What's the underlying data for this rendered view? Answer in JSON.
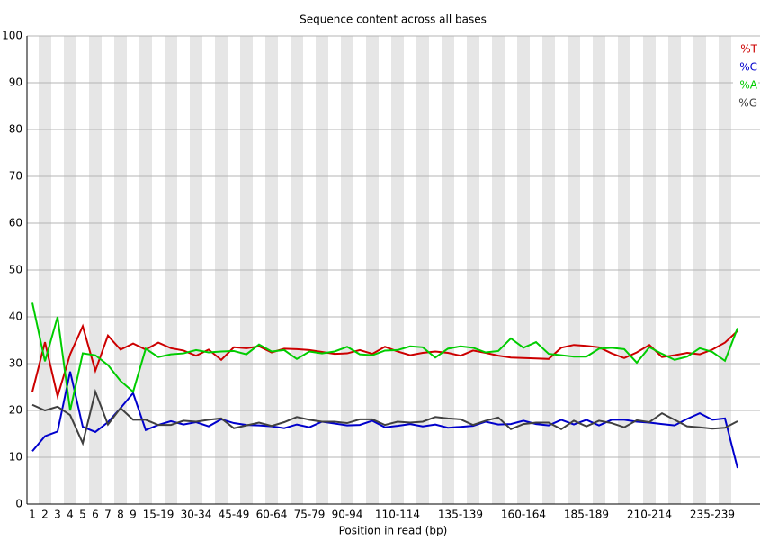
{
  "chart_data": {
    "type": "line",
    "title": "Sequence content across all bases",
    "x_label": "Position in read (bp)",
    "categories": [
      "1",
      "2",
      "3",
      "4",
      "5",
      "6",
      "7",
      "8",
      "9",
      null,
      "15-19",
      null,
      null,
      "30-34",
      null,
      null,
      "45-49",
      null,
      null,
      "60-64",
      null,
      null,
      "75-79",
      null,
      null,
      "90-94",
      null,
      null,
      null,
      "110-114",
      null,
      null,
      null,
      null,
      "135-139",
      null,
      null,
      null,
      null,
      "160-164",
      null,
      null,
      null,
      null,
      "185-189",
      null,
      null,
      null,
      null,
      "210-214",
      null,
      null,
      null,
      null,
      "235-239",
      null,
      null
    ],
    "series": [
      {
        "name": "%T",
        "color": "#cc0000",
        "values": [
          24,
          34.6,
          23,
          32,
          38,
          28.5,
          36,
          33,
          34.3,
          33,
          34.5,
          33.3,
          32.8,
          31.7,
          33,
          30.8,
          33.5,
          33.3,
          33.7,
          32.4,
          33.2,
          33.1,
          32.9,
          32.5,
          32.1,
          32.2,
          32.9,
          32.1,
          33.6,
          32.6,
          31.8,
          32.3,
          32.6,
          32.3,
          31.7,
          32.8,
          32.3,
          31.7,
          31.3,
          31.2,
          31.1,
          31,
          33.4,
          34,
          33.8,
          33.5,
          32.2,
          31.2,
          32.4,
          34,
          31.4,
          31.8,
          32.3,
          32,
          33,
          34.5,
          37
        ]
      },
      {
        "name": "%C",
        "color": "#0000cc",
        "values": [
          11.3,
          14.5,
          15.5,
          28.3,
          16.5,
          15.4,
          17.5,
          20.5,
          23.7,
          15.8,
          16.9,
          17.7,
          17,
          17.5,
          16.6,
          18.1,
          17.3,
          16.9,
          16.8,
          16.6,
          16.2,
          17,
          16.4,
          17.6,
          17.2,
          16.8,
          16.9,
          17.8,
          16.4,
          16.7,
          17.1,
          16.6,
          17,
          16.3,
          16.5,
          16.7,
          17.6,
          17,
          17.1,
          17.8,
          17.1,
          16.8,
          18,
          17,
          18,
          16.8,
          18,
          18,
          17.6,
          17.4,
          17.1,
          16.8,
          18.2,
          19.4,
          18,
          18.3,
          7.7
        ]
      },
      {
        "name": "%A",
        "color": "#00cc00",
        "values": [
          43,
          30.5,
          40,
          20,
          32.2,
          31.8,
          29.7,
          26.3,
          24,
          33.2,
          31.4,
          32,
          32.2,
          32.9,
          32.4,
          32.6,
          32.7,
          32,
          34.1,
          32.6,
          32.9,
          31,
          32.6,
          32.2,
          32.6,
          33.6,
          32,
          31.8,
          32.8,
          32.9,
          33.7,
          33.5,
          31.3,
          33.2,
          33.7,
          33.4,
          32.4,
          32.7,
          35.4,
          33.4,
          34.6,
          32.1,
          31.8,
          31.5,
          31.5,
          33.2,
          33.4,
          33.1,
          30.2,
          33.5,
          32.1,
          30.8,
          31.5,
          33.3,
          32.5,
          30.6,
          37.6
        ]
      },
      {
        "name": "%G",
        "color": "#404040",
        "values": [
          21.2,
          20,
          20.8,
          19,
          13,
          24,
          17,
          20.5,
          18,
          18,
          16.9,
          16.9,
          17.8,
          17.6,
          18,
          18.3,
          16.2,
          16.8,
          17.4,
          16.7,
          17.5,
          18.6,
          18,
          17.6,
          17.6,
          17.3,
          18.1,
          18.1,
          16.9,
          17.6,
          17.4,
          17.6,
          18.6,
          18.3,
          18.1,
          16.9,
          17.8,
          18.5,
          16,
          17.1,
          17.4,
          17.4,
          16,
          17.8,
          16.6,
          17.8,
          17.3,
          16.4,
          17.9,
          17.5,
          19.4,
          18,
          16.6,
          16.4,
          16.1,
          16.3,
          17.7
        ]
      }
    ],
    "ylim": [
      0,
      100
    ],
    "yticks": [
      0,
      10,
      20,
      30,
      40,
      50,
      60,
      70,
      80,
      90,
      100
    ],
    "grid": true,
    "legend": "top-right"
  }
}
